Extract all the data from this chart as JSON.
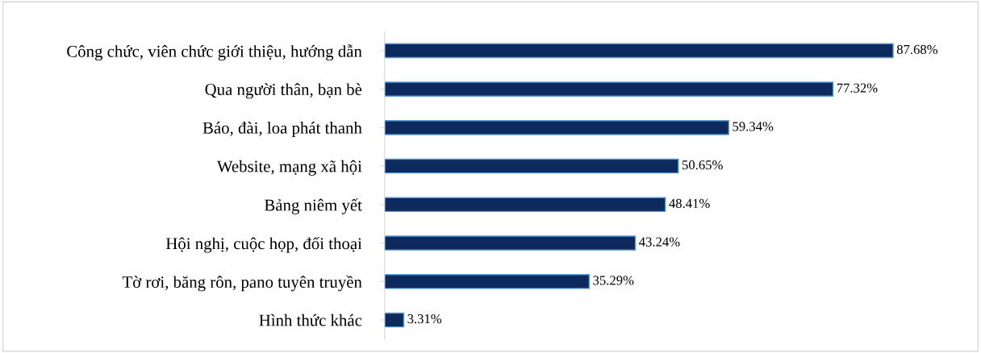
{
  "chart_data": {
    "type": "bar",
    "orientation": "horizontal",
    "categories": [
      "Công chức, viên chức giới thiệu, hướng dẫn",
      "Qua người thân, bạn bè",
      "Báo, đài, loa phát thanh",
      "Website, mạng xã hội",
      "Bảng niêm yết",
      "Hội nghị, cuộc họp, đối thoại",
      "Tờ rơi, băng rôn, pano tuyên truyền",
      "Hình thức khác"
    ],
    "values": [
      87.68,
      77.32,
      59.34,
      50.65,
      48.41,
      43.24,
      35.29,
      3.31
    ],
    "value_labels": [
      "87.68%",
      "77.32%",
      "59.34%",
      "50.65%",
      "48.41%",
      "43.24%",
      "35.29%",
      "3.31%"
    ],
    "color": "#0d2a5e",
    "tick_labels": "y",
    "grid": false
  }
}
